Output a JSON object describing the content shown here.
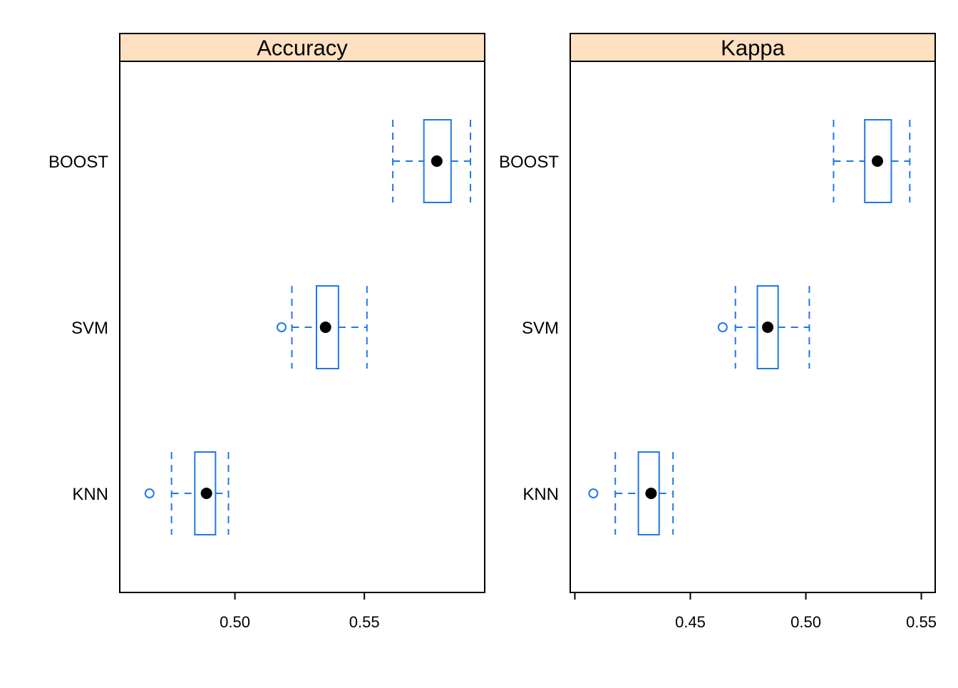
{
  "colors": {
    "strip": "#FFE0C0",
    "box": "#1F78E6",
    "median": "#000000",
    "frame": "#000000",
    "background": "#FFFFFF"
  },
  "chart_data": [
    {
      "type": "box",
      "orientation": "horizontal",
      "title": "Accuracy",
      "categories": [
        "BOOST",
        "SVM",
        "KNN"
      ],
      "xlim": [
        0.4555,
        0.5965
      ],
      "xticks": [
        0.5,
        0.55
      ],
      "xtick_labels": [
        "0.50",
        "0.55"
      ],
      "boxes": [
        {
          "name": "BOOST",
          "whisker_low": 0.561,
          "q1": 0.573,
          "median": 0.578,
          "q3": 0.5835,
          "whisker_high": 0.591,
          "outliers": []
        },
        {
          "name": "SVM",
          "whisker_low": 0.522,
          "q1": 0.5315,
          "median": 0.535,
          "q3": 0.54,
          "whisker_high": 0.551,
          "outliers": [
            0.518
          ]
        },
        {
          "name": "KNN",
          "whisker_low": 0.4755,
          "q1": 0.4845,
          "median": 0.489,
          "q3": 0.4925,
          "whisker_high": 0.4975,
          "outliers": [
            0.467
          ]
        }
      ]
    },
    {
      "type": "box",
      "orientation": "horizontal",
      "title": "Kappa",
      "categories": [
        "BOOST",
        "SVM",
        "KNN"
      ],
      "xlim": [
        0.398,
        0.556
      ],
      "xticks": [
        0.4,
        0.45,
        0.5,
        0.55
      ],
      "xtick_labels": [
        "",
        "0.45",
        "0.50",
        "0.55"
      ],
      "boxes": [
        {
          "name": "BOOST",
          "whisker_low": 0.512,
          "q1": 0.5255,
          "median": 0.531,
          "q3": 0.537,
          "whisker_high": 0.545,
          "outliers": []
        },
        {
          "name": "SVM",
          "whisker_low": 0.4695,
          "q1": 0.479,
          "median": 0.4835,
          "q3": 0.488,
          "whisker_high": 0.5015,
          "outliers": [
            0.464
          ]
        },
        {
          "name": "KNN",
          "whisker_low": 0.4175,
          "q1": 0.4275,
          "median": 0.433,
          "q3": 0.4365,
          "whisker_high": 0.4425,
          "outliers": [
            0.408
          ]
        }
      ]
    }
  ]
}
